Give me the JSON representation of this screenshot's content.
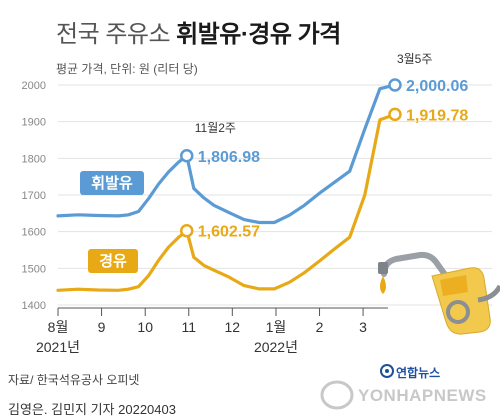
{
  "header": {
    "title_light": "전국 주유소",
    "title_bold": "휘발유·경유 가격",
    "subtitle": "평균 가격, 단위: 원 (리터 당)"
  },
  "footer": {
    "source": "자료/ 한국석유공사 오피넷",
    "author": "김영은. 김민지 기자  20220403",
    "logo_top": "연합뉴스",
    "logo_main": "YONHAPNEWS"
  },
  "colors": {
    "gasoline": "#5b9bd5",
    "diesel": "#e8a917",
    "grid": "#e3e3e3",
    "axis_text": "#888888",
    "x_text": "#333333"
  },
  "chart_data": {
    "type": "line",
    "ylim": [
      1400,
      2000
    ],
    "yticks": [
      1400,
      1500,
      1600,
      1700,
      1800,
      1900,
      2000
    ],
    "xlim": [
      0,
      34
    ],
    "x_ticks": [
      {
        "x": 0,
        "label": "8월"
      },
      {
        "x": 4.33,
        "label": "9"
      },
      {
        "x": 8.67,
        "label": "10"
      },
      {
        "x": 13.0,
        "label": "11"
      },
      {
        "x": 17.33,
        "label": "12"
      },
      {
        "x": 21.67,
        "label": "1월"
      },
      {
        "x": 26.0,
        "label": "2"
      },
      {
        "x": 30.33,
        "label": "3"
      }
    ],
    "year_labels": [
      {
        "x": 0,
        "label": "2021년"
      },
      {
        "x": 21.67,
        "label": "2022년"
      }
    ],
    "series": [
      {
        "name": "휘발유",
        "color": "#5b9bd5",
        "points": [
          [
            0,
            1643
          ],
          [
            2,
            1646
          ],
          [
            4,
            1644
          ],
          [
            6,
            1643
          ],
          [
            7,
            1646
          ],
          [
            8,
            1655
          ],
          [
            9,
            1690
          ],
          [
            10,
            1730
          ],
          [
            11,
            1763
          ],
          [
            12,
            1790
          ],
          [
            12.8,
            1806.98
          ],
          [
            13.5,
            1718
          ],
          [
            14.5,
            1692
          ],
          [
            15.5,
            1672
          ],
          [
            17,
            1652
          ],
          [
            18.5,
            1633
          ],
          [
            20,
            1625
          ],
          [
            21.5,
            1625
          ],
          [
            23,
            1645
          ],
          [
            24.5,
            1672
          ],
          [
            26,
            1705
          ],
          [
            27.5,
            1735
          ],
          [
            29,
            1765
          ],
          [
            30.5,
            1880
          ],
          [
            32,
            1990
          ],
          [
            33.5,
            2000.06
          ]
        ]
      },
      {
        "name": "경유",
        "color": "#e8a917",
        "points": [
          [
            0,
            1440
          ],
          [
            2,
            1443
          ],
          [
            4,
            1441
          ],
          [
            6,
            1440
          ],
          [
            7,
            1443
          ],
          [
            8,
            1450
          ],
          [
            9,
            1480
          ],
          [
            10,
            1522
          ],
          [
            11,
            1558
          ],
          [
            12,
            1585
          ],
          [
            12.8,
            1602.57
          ],
          [
            13.5,
            1530
          ],
          [
            14.5,
            1508
          ],
          [
            15.5,
            1495
          ],
          [
            17,
            1476
          ],
          [
            18.5,
            1453
          ],
          [
            20,
            1444
          ],
          [
            21.5,
            1444
          ],
          [
            23,
            1462
          ],
          [
            24.5,
            1488
          ],
          [
            26,
            1520
          ],
          [
            27.5,
            1553
          ],
          [
            29,
            1585
          ],
          [
            30.5,
            1700
          ],
          [
            32,
            1905
          ],
          [
            33.5,
            1919.78
          ]
        ]
      }
    ],
    "annotations": [
      {
        "series": 0,
        "x": 12.8,
        "y": 1806.98,
        "label": "11월2주",
        "value": "1,806.98"
      },
      {
        "series": 1,
        "x": 12.8,
        "y": 1602.57,
        "label": "",
        "value": "1,602.57"
      },
      {
        "series": 0,
        "x": 33.5,
        "y": 2000.06,
        "label": "3월5주",
        "value": "2,000.06"
      },
      {
        "series": 1,
        "x": 33.5,
        "y": 1919.78,
        "label": "",
        "value": "1,919.78"
      }
    ],
    "series_labels": [
      {
        "series": 0,
        "text": "휘발유"
      },
      {
        "series": 1,
        "text": "경유"
      }
    ],
    "illustration": "fuel-nozzle-icon"
  }
}
